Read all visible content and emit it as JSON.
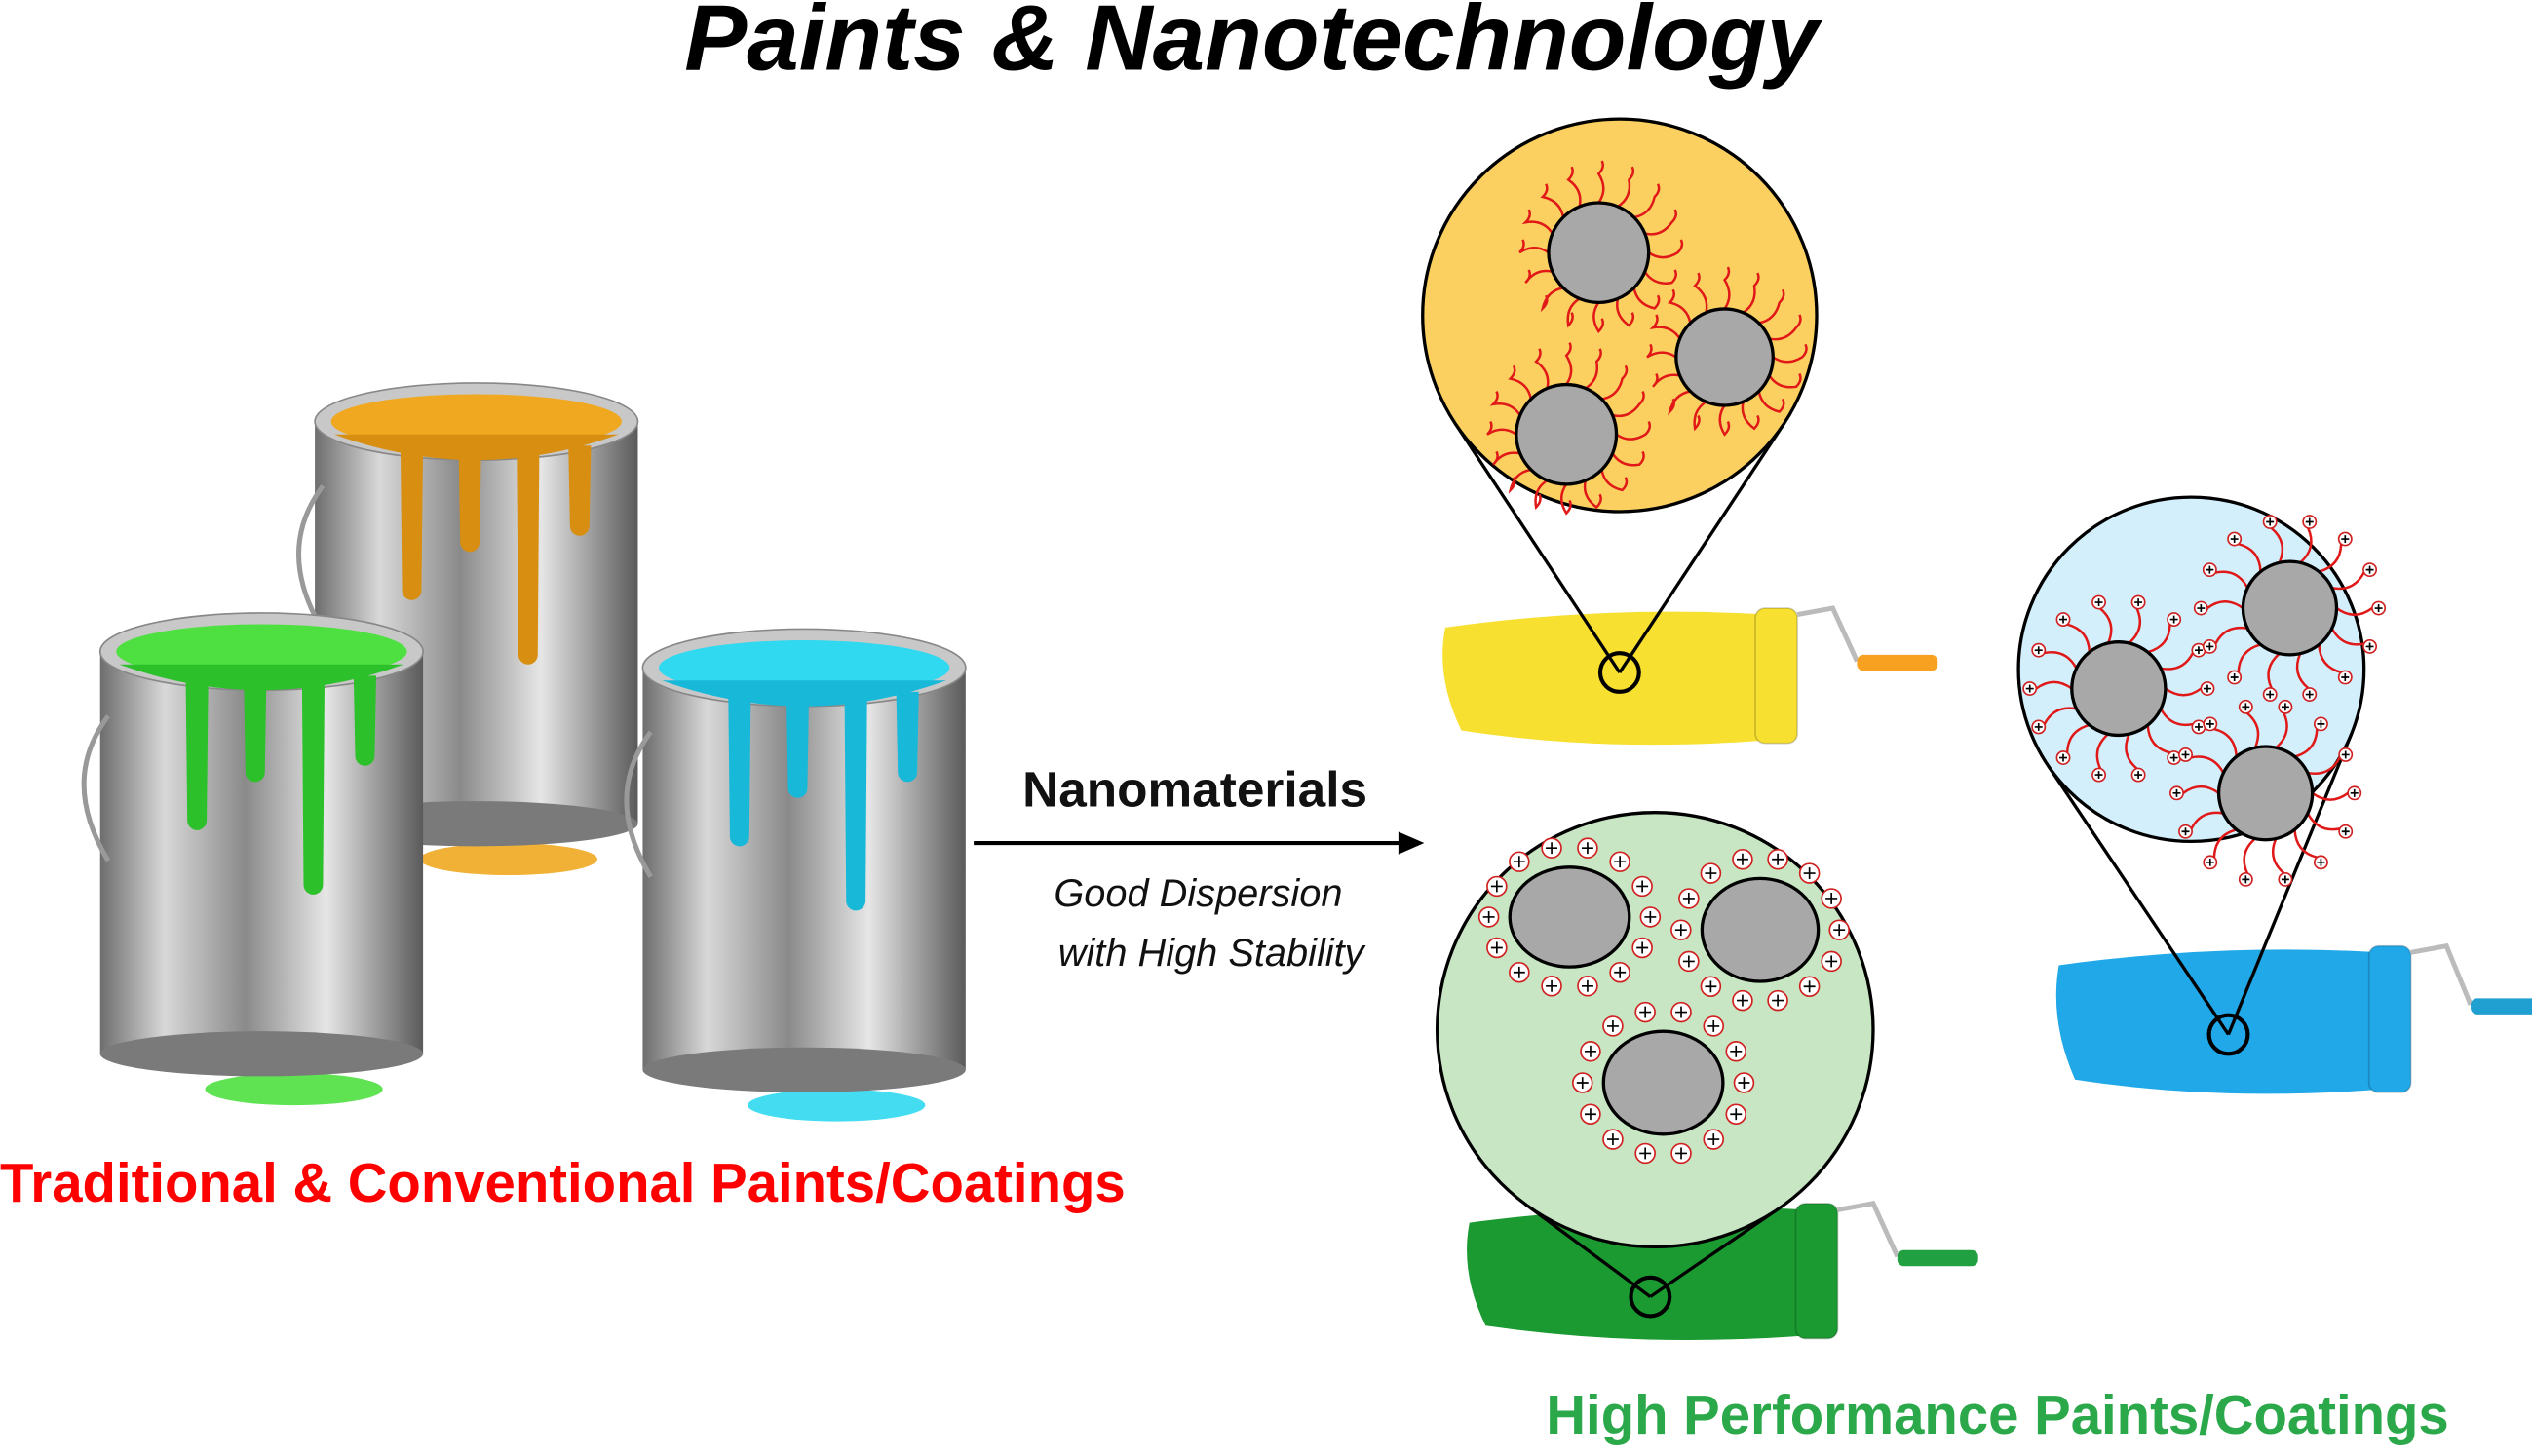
{
  "title": "Paints & Nanotechnology",
  "left_label": "Traditional & Conventional Paints/Coatings",
  "arrow": {
    "label": "Nanomaterials",
    "caption_lines": [
      "Good Dispersion",
      "with High Stability"
    ]
  },
  "right_label": "High Performance Paints/Coatings"
}
